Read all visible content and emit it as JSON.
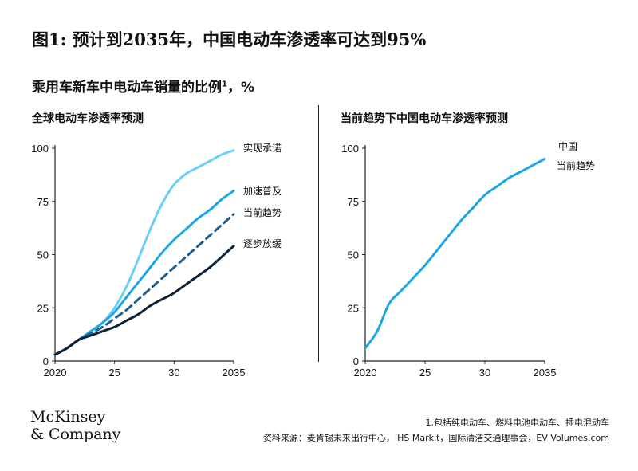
{
  "title": "图1: 预计到2035年，中国电动车渗透率可达到95%",
  "subtitle": "乘用车新车中电动车销量的比例",
  "subtitle_sup": "1",
  "subtitle_unit": "，%",
  "logo_line1": "McKinsey",
  "logo_line2": "& Company",
  "footnote": "1.包括纯电动车、燃料电池电动车、插电混动车",
  "source": "资料来源：麦肯锡未来出行中心，IHS Markit，国际清洁交通理事会，EV Volumes.com",
  "colors": {
    "light_blue": "#6ccff6",
    "mid_blue": "#1ba7e5",
    "dashed_blue": "#1f5f8f",
    "dark_navy": "#0d2238"
  },
  "chart_data": [
    {
      "type": "line",
      "title": "全球电动车渗透率预测",
      "xlim": [
        2020,
        2035
      ],
      "ylim": [
        0,
        100
      ],
      "x_ticks": [
        "2020",
        "25",
        "30",
        "2035"
      ],
      "y_ticks": [
        "0",
        "25",
        "50",
        "75",
        "100"
      ],
      "legend": "right-end labels",
      "series": [
        {
          "name": "实现承诺",
          "color": "#6ccff6",
          "dashed": false,
          "x": [
            2020,
            2021,
            2022,
            2023,
            2024,
            2025,
            2026,
            2027,
            2028,
            2029,
            2030,
            2031,
            2032,
            2033,
            2034,
            2035
          ],
          "values": [
            3,
            6,
            10,
            14,
            18,
            25,
            35,
            48,
            62,
            74,
            83,
            88,
            91,
            94,
            97,
            99
          ]
        },
        {
          "name": "加速普及",
          "color": "#1ba7e5",
          "dashed": false,
          "x": [
            2020,
            2021,
            2022,
            2023,
            2024,
            2025,
            2026,
            2027,
            2028,
            2029,
            2030,
            2031,
            2032,
            2033,
            2034,
            2035
          ],
          "values": [
            3,
            6,
            10,
            14,
            18,
            23,
            30,
            37,
            44,
            51,
            57,
            62,
            67,
            71,
            76,
            80
          ]
        },
        {
          "name": "当前趋势",
          "color": "#1f5f8f",
          "dashed": true,
          "x": [
            2020,
            2021,
            2022,
            2023,
            2024,
            2025,
            2026,
            2027,
            2028,
            2029,
            2030,
            2031,
            2032,
            2033,
            2034,
            2035
          ],
          "values": [
            3,
            6,
            10,
            13,
            16,
            20,
            24,
            29,
            34,
            39,
            44,
            49,
            54,
            59,
            64,
            69
          ]
        },
        {
          "name": "逐步放缓",
          "color": "#0d2238",
          "dashed": false,
          "x": [
            2020,
            2021,
            2022,
            2023,
            2024,
            2025,
            2026,
            2027,
            2028,
            2029,
            2030,
            2031,
            2032,
            2033,
            2034,
            2035
          ],
          "values": [
            3,
            6,
            10,
            12,
            14,
            16,
            19,
            22,
            26,
            29,
            32,
            36,
            40,
            44,
            49,
            54
          ]
        }
      ]
    },
    {
      "type": "line",
      "title": "当前趋势下中国电动车渗透率预测",
      "xlim": [
        2020,
        2035
      ],
      "ylim": [
        0,
        100
      ],
      "x_ticks": [
        "2020",
        "25",
        "30",
        "2035"
      ],
      "y_ticks": [
        "0",
        "25",
        "50",
        "75",
        "100"
      ],
      "legend": "top-right label",
      "series": [
        {
          "name": "中国 当前趋势",
          "label_lines": [
            "中国",
            "当前趋势"
          ],
          "color": "#1ba7e5",
          "dashed": false,
          "x": [
            2020,
            2021,
            2022,
            2023,
            2024,
            2025,
            2026,
            2027,
            2028,
            2029,
            2030,
            2031,
            2032,
            2033,
            2034,
            2035
          ],
          "values": [
            6,
            14,
            27,
            33,
            39,
            45,
            52,
            59,
            66,
            72,
            78,
            82,
            86,
            89,
            92,
            95
          ]
        }
      ]
    }
  ]
}
